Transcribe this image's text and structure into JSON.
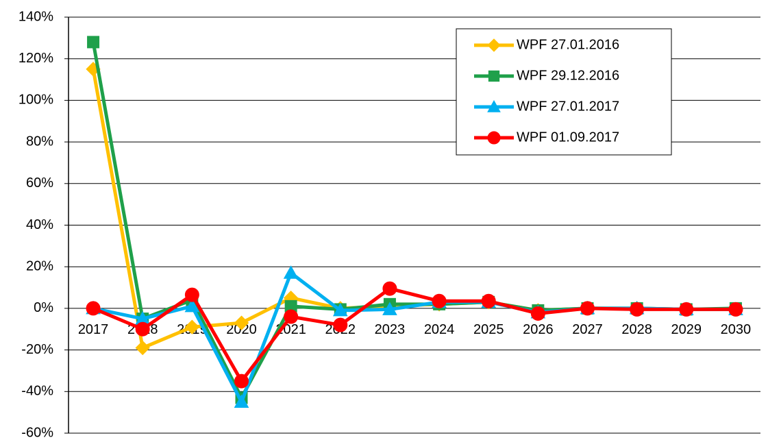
{
  "chart_data": {
    "type": "line",
    "categories": [
      "2017",
      "2018",
      "2019",
      "2020",
      "2021",
      "2022",
      "2023",
      "2024",
      "2025",
      "2026",
      "2027",
      "2028",
      "2029",
      "2030"
    ],
    "series": [
      {
        "name": "WPF 27.01.2016",
        "color": "#FFC000",
        "marker": "diamond",
        "values": [
          115,
          -19,
          -9,
          -7,
          5,
          0,
          1,
          2,
          3,
          -1,
          0,
          0,
          -0.5,
          -0.5
        ]
      },
      {
        "name": "WPF 29.12.2016",
        "color": "#1FA04A",
        "marker": "square",
        "values": [
          128,
          -5,
          4,
          -43,
          1,
          -0.5,
          2,
          2,
          3,
          -1,
          0,
          0,
          -0.5,
          0
        ]
      },
      {
        "name": "WPF 27.01.2017",
        "color": "#00B0F0",
        "marker": "triangle",
        "values": [
          0,
          -5,
          1,
          -45,
          17,
          -1,
          -0.5,
          3,
          3,
          -2,
          0,
          0,
          -0.5,
          -0.5
        ]
      },
      {
        "name": "WPF 01.09.2017",
        "color": "#FF0000",
        "marker": "circle",
        "values": [
          0,
          -10,
          6.5,
          -35,
          -4,
          -8,
          9.5,
          3.5,
          3.5,
          -2.5,
          0,
          -0.5,
          -0.5,
          -0.5
        ]
      }
    ],
    "ylim": [
      -60,
      140
    ],
    "yticks": [
      {
        "value": -60,
        "label": "-60%"
      },
      {
        "value": -40,
        "label": "-40%"
      },
      {
        "value": -20,
        "label": "-20%"
      },
      {
        "value": 0,
        "label": "0%"
      },
      {
        "value": 20,
        "label": "20%"
      },
      {
        "value": 40,
        "label": "40%"
      },
      {
        "value": 60,
        "label": "60%"
      },
      {
        "value": 80,
        "label": "80%"
      },
      {
        "value": 100,
        "label": "100%"
      },
      {
        "value": 120,
        "label": "120%"
      },
      {
        "value": 140,
        "label": "140%"
      }
    ],
    "grid": true,
    "legend": "top-right"
  }
}
